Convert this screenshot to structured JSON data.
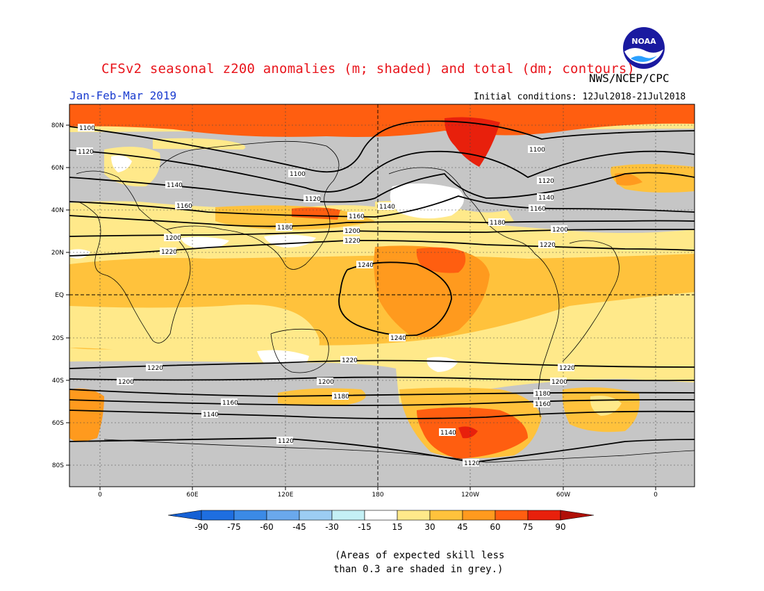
{
  "title": "CFSv2 seasonal z200 anomalies (m; shaded) and total (dm; contours)",
  "agency": "NWS/NCEP/CPC",
  "season": "Jan-Feb-Mar 2019",
  "initial_conditions": "Initial conditions: 12Jul2018-21Jul2018",
  "logo_text": "NOAA",
  "note_line1": "(Areas of expected skill less",
  "note_line2": "than 0.3 are shaded in grey.)",
  "lat_labels": [
    "80N",
    "60N",
    "40N",
    "20N",
    "EQ",
    "20S",
    "40S",
    "60S",
    "80S"
  ],
  "lon_labels": [
    "0",
    "60E",
    "120E",
    "180",
    "120W",
    "60W",
    "0"
  ],
  "contour_labels": {
    "c1100": "1100",
    "c1120": "1120",
    "c1140": "1140",
    "c1160": "1160",
    "c1180": "1180",
    "c1200": "1200",
    "c1220": "1220",
    "c1240": "1240"
  },
  "legend": {
    "labels": [
      "-90",
      "-75",
      "-60",
      "-45",
      "-30",
      "-15",
      "15",
      "30",
      "45",
      "60",
      "75",
      "90"
    ],
    "colors": [
      "#1560d4",
      "#1e6ee0",
      "#3b8ae6",
      "#6aa8ec",
      "#9ccdf3",
      "#c4f0f5",
      "#ffffff",
      "#ffe98a",
      "#ffc23c",
      "#ff9a1e",
      "#ff5e10",
      "#e8200c",
      "#b01008"
    ]
  },
  "colors": {
    "grey": "#c6c6c6",
    "grid": "#444444"
  }
}
